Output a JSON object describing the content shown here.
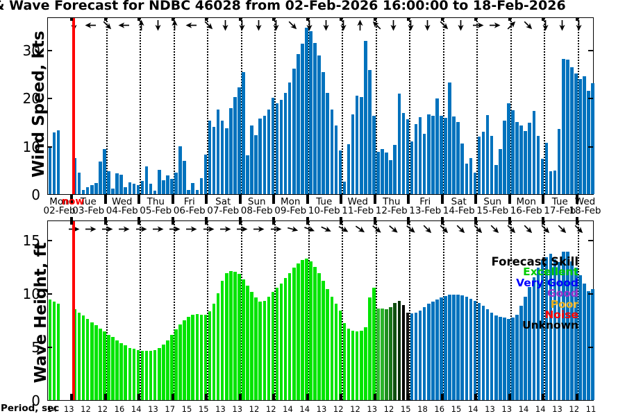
{
  "title": "& Wave Forecast for NDBC 46028 from 02-Feb-2026 16:00:00 to 18-Feb-2026",
  "now_label": "now",
  "now_line_color": "#FF0000",
  "legend": {
    "title": "Forecast Skill",
    "entries": [
      {
        "label": "Excellent",
        "color": "#00CC00"
      },
      {
        "label": "Very Good",
        "color": "#0000FF"
      },
      {
        "label": "Good",
        "color": "#9A33CC"
      },
      {
        "label": "Poor",
        "color": "#EDB120"
      },
      {
        "label": "Noise",
        "color": "#FF0000"
      },
      {
        "label": "Unknown",
        "color": "#000000"
      }
    ]
  },
  "x_axis": {
    "day_labels": [
      {
        "name": "Mon",
        "date": "02-Feb"
      },
      {
        "name": "Tue",
        "date": "03-Feb"
      },
      {
        "name": "Wed",
        "date": "04-Feb"
      },
      {
        "name": "Thu",
        "date": "05-Feb"
      },
      {
        "name": "Fri",
        "date": "06-Feb"
      },
      {
        "name": "Sat",
        "date": "07-Feb"
      },
      {
        "name": "Sun",
        "date": "08-Feb"
      },
      {
        "name": "Mon",
        "date": "09-Feb"
      },
      {
        "name": "Tue",
        "date": "10-Feb"
      },
      {
        "name": "Wed",
        "date": "11-Feb"
      },
      {
        "name": "Thu",
        "date": "12-Feb"
      },
      {
        "name": "Fri",
        "date": "13-Feb"
      },
      {
        "name": "Sat",
        "date": "14-Feb"
      },
      {
        "name": "Sun",
        "date": "15-Feb"
      },
      {
        "name": "Mon",
        "date": "16-Feb"
      },
      {
        "name": "Tue",
        "date": "17-Feb"
      },
      {
        "name": "Wed",
        "date": "18-Feb"
      }
    ]
  },
  "chart_data": [
    {
      "type": "bar",
      "id": "wind",
      "ylabel": "Wind Speed, kts",
      "yticks": [
        0,
        10,
        20,
        30
      ],
      "ylim": [
        0,
        36.8
      ],
      "interval_hours": 3,
      "start": "02-Feb-2026 16:00:00",
      "bar_color": "#0072BD",
      "values": [
        10.0,
        12.8,
        13.2,
        7.5,
        4.5,
        0.9,
        1.5,
        1.9,
        2.3,
        6.7,
        9.3,
        4.7,
        1.2,
        4.3,
        4.0,
        1.4,
        2.4,
        2.1,
        1.9,
        2.7,
        5.7,
        2.2,
        0.7,
        5.0,
        2.9,
        3.9,
        3.2,
        4.5,
        10.0,
        6.9,
        0.8,
        2.3,
        0.9,
        3.3,
        8.2,
        15.2,
        14.0,
        17.5,
        15.3,
        13.7,
        17.8,
        20.2,
        22.1,
        25.3,
        8.0,
        14.3,
        12.2,
        15.7,
        16.3,
        17.5,
        20.0,
        18.8,
        19.5,
        21.0,
        23.2,
        26.0,
        29.0,
        31.2,
        34.5,
        33.8,
        31.3,
        28.8,
        25.3,
        21.0,
        17.5,
        14.3,
        9.0,
        2.6,
        10.3,
        16.6,
        20.5,
        20.1,
        31.8,
        25.7,
        16.2,
        8.8,
        9.3,
        8.6,
        7.0,
        10.2,
        20.8,
        16.8,
        15.5,
        11.0,
        14.5,
        16.0,
        12.5,
        16.5,
        16.3,
        19.8,
        16.2,
        15.9,
        23.1,
        16.1,
        15.0,
        10.5,
        6.3,
        7.5,
        4.5,
        12.0,
        13.0,
        16.4,
        12.1,
        6.0,
        9.4,
        15.3,
        18.8,
        17.4,
        15.0,
        14.3,
        13.1,
        14.8,
        17.3,
        12.1,
        7.3,
        10.6,
        4.8,
        4.9,
        13.5,
        28.0,
        27.9,
        26.3,
        25.0,
        23.9,
        24.4,
        21.4,
        23.0
      ],
      "arrow_angles_deg": [
        90,
        180,
        45,
        180,
        270,
        90,
        270,
        180,
        45,
        90,
        90,
        90,
        90,
        45,
        90,
        90,
        90,
        270,
        225,
        90,
        90,
        90,
        45,
        90,
        0,
        0,
        315,
        45,
        90,
        90,
        90
      ]
    },
    {
      "type": "bar",
      "id": "wave",
      "ylabel": "Wave Height, ft",
      "yticks": [
        0,
        5,
        10,
        15
      ],
      "ylim": [
        0,
        16.9
      ],
      "interval_hours": 3,
      "values": [
        9.4,
        9.2,
        9.0,
        8.5,
        8.2,
        7.9,
        7.6,
        7.3,
        7.0,
        6.7,
        6.4,
        6.1,
        5.9,
        5.6,
        5.3,
        5.1,
        4.9,
        4.8,
        4.7,
        4.6,
        4.6,
        4.6,
        4.7,
        4.9,
        5.2,
        5.6,
        6.1,
        6.6,
        7.1,
        7.5,
        7.8,
        8.0,
        8.05,
        8.0,
        8.0,
        8.3,
        9.0,
        10.0,
        11.2,
        11.9,
        12.1,
        12.0,
        11.8,
        11.3,
        10.7,
        10.1,
        9.6,
        9.2,
        9.3,
        9.7,
        10.1,
        10.5,
        10.9,
        11.4,
        11.9,
        12.4,
        12.8,
        13.1,
        13.25,
        13.0,
        12.5,
        11.9,
        11.2,
        10.4,
        9.7,
        9.0,
        8.4,
        7.2,
        6.7,
        6.5,
        6.4,
        6.5,
        6.8,
        9.6,
        10.5,
        8.6,
        8.6,
        8.5,
        8.7,
        9.1,
        9.3,
        8.9,
        8.2,
        8.1,
        8.2,
        8.4,
        8.7,
        9.0,
        9.2,
        9.4,
        9.6,
        9.75,
        9.85,
        9.9,
        9.85,
        9.8,
        9.7,
        9.5,
        9.3,
        9.1,
        8.8,
        8.5,
        8.2,
        7.95,
        7.8,
        7.7,
        7.6,
        7.7,
        8.0,
        8.8,
        9.7,
        10.6,
        11.5,
        12.4,
        13.1,
        13.4,
        13.7,
        13.2,
        12.9,
        13.9,
        13.9,
        13.0,
        12.4,
        11.7,
        10.9,
        10.2,
        10.4
      ],
      "skill": {
        "excellent_color": "#00E400",
        "very_good_color": "#0072BD",
        "excellent_through_index": 74,
        "transition_colors": [
          "#2FBF2F",
          "#2AB32A",
          "#1F8F1F",
          "#187418",
          "#0F4F0F",
          "#093109",
          "#000000",
          "#151515"
        ],
        "very_good_from_index": 83
      },
      "arrow_angles_deg": [
        0,
        0,
        0,
        0,
        0,
        0,
        0,
        0,
        0,
        0,
        0,
        0,
        0,
        15,
        20,
        25,
        30,
        35,
        40,
        40,
        40,
        45,
        45,
        45,
        45,
        45,
        45,
        45,
        45,
        45,
        45
      ],
      "period_axis_label": "Period, sec",
      "period_labels": [
        14,
        13,
        12,
        12,
        16,
        14,
        13,
        17,
        15,
        15,
        13,
        13,
        12,
        12,
        14,
        14,
        13,
        12,
        12,
        13,
        12,
        15,
        18,
        16,
        15,
        14,
        13,
        13,
        14,
        14,
        13,
        12,
        11
      ]
    }
  ]
}
